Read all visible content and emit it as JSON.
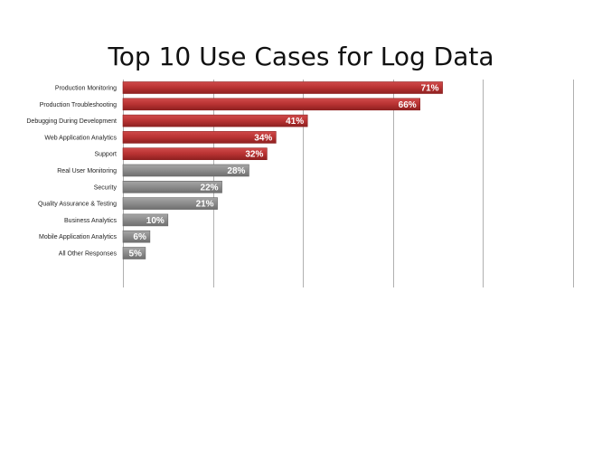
{
  "chart_data": {
    "type": "bar",
    "orientation": "horizontal",
    "title": "Top 10 Use Cases for Log Data",
    "categories": [
      "Production Monitoring",
      "Production Troubleshooting",
      "Debugging During Development",
      "Web Application Analytics",
      "Support",
      "Real User Monitoring",
      "Security",
      "Quality Assurance & Testing",
      "Business Analytics",
      "Mobile Application Analytics",
      "All Other Responses"
    ],
    "values": [
      71,
      66,
      41,
      34,
      32,
      28,
      22,
      21,
      10,
      6,
      5
    ],
    "value_labels": [
      "71%",
      "66%",
      "41%",
      "34%",
      "32%",
      "28%",
      "22%",
      "21%",
      "10%",
      "6%",
      "5%"
    ],
    "xlim": [
      0,
      100
    ],
    "grid": true,
    "colors": {
      "highlight": "#b83232",
      "highlight_edge": "#8a1f1f",
      "other": "#8c8c8c",
      "other_edge": "#666666"
    },
    "highlight_count": 5
  }
}
